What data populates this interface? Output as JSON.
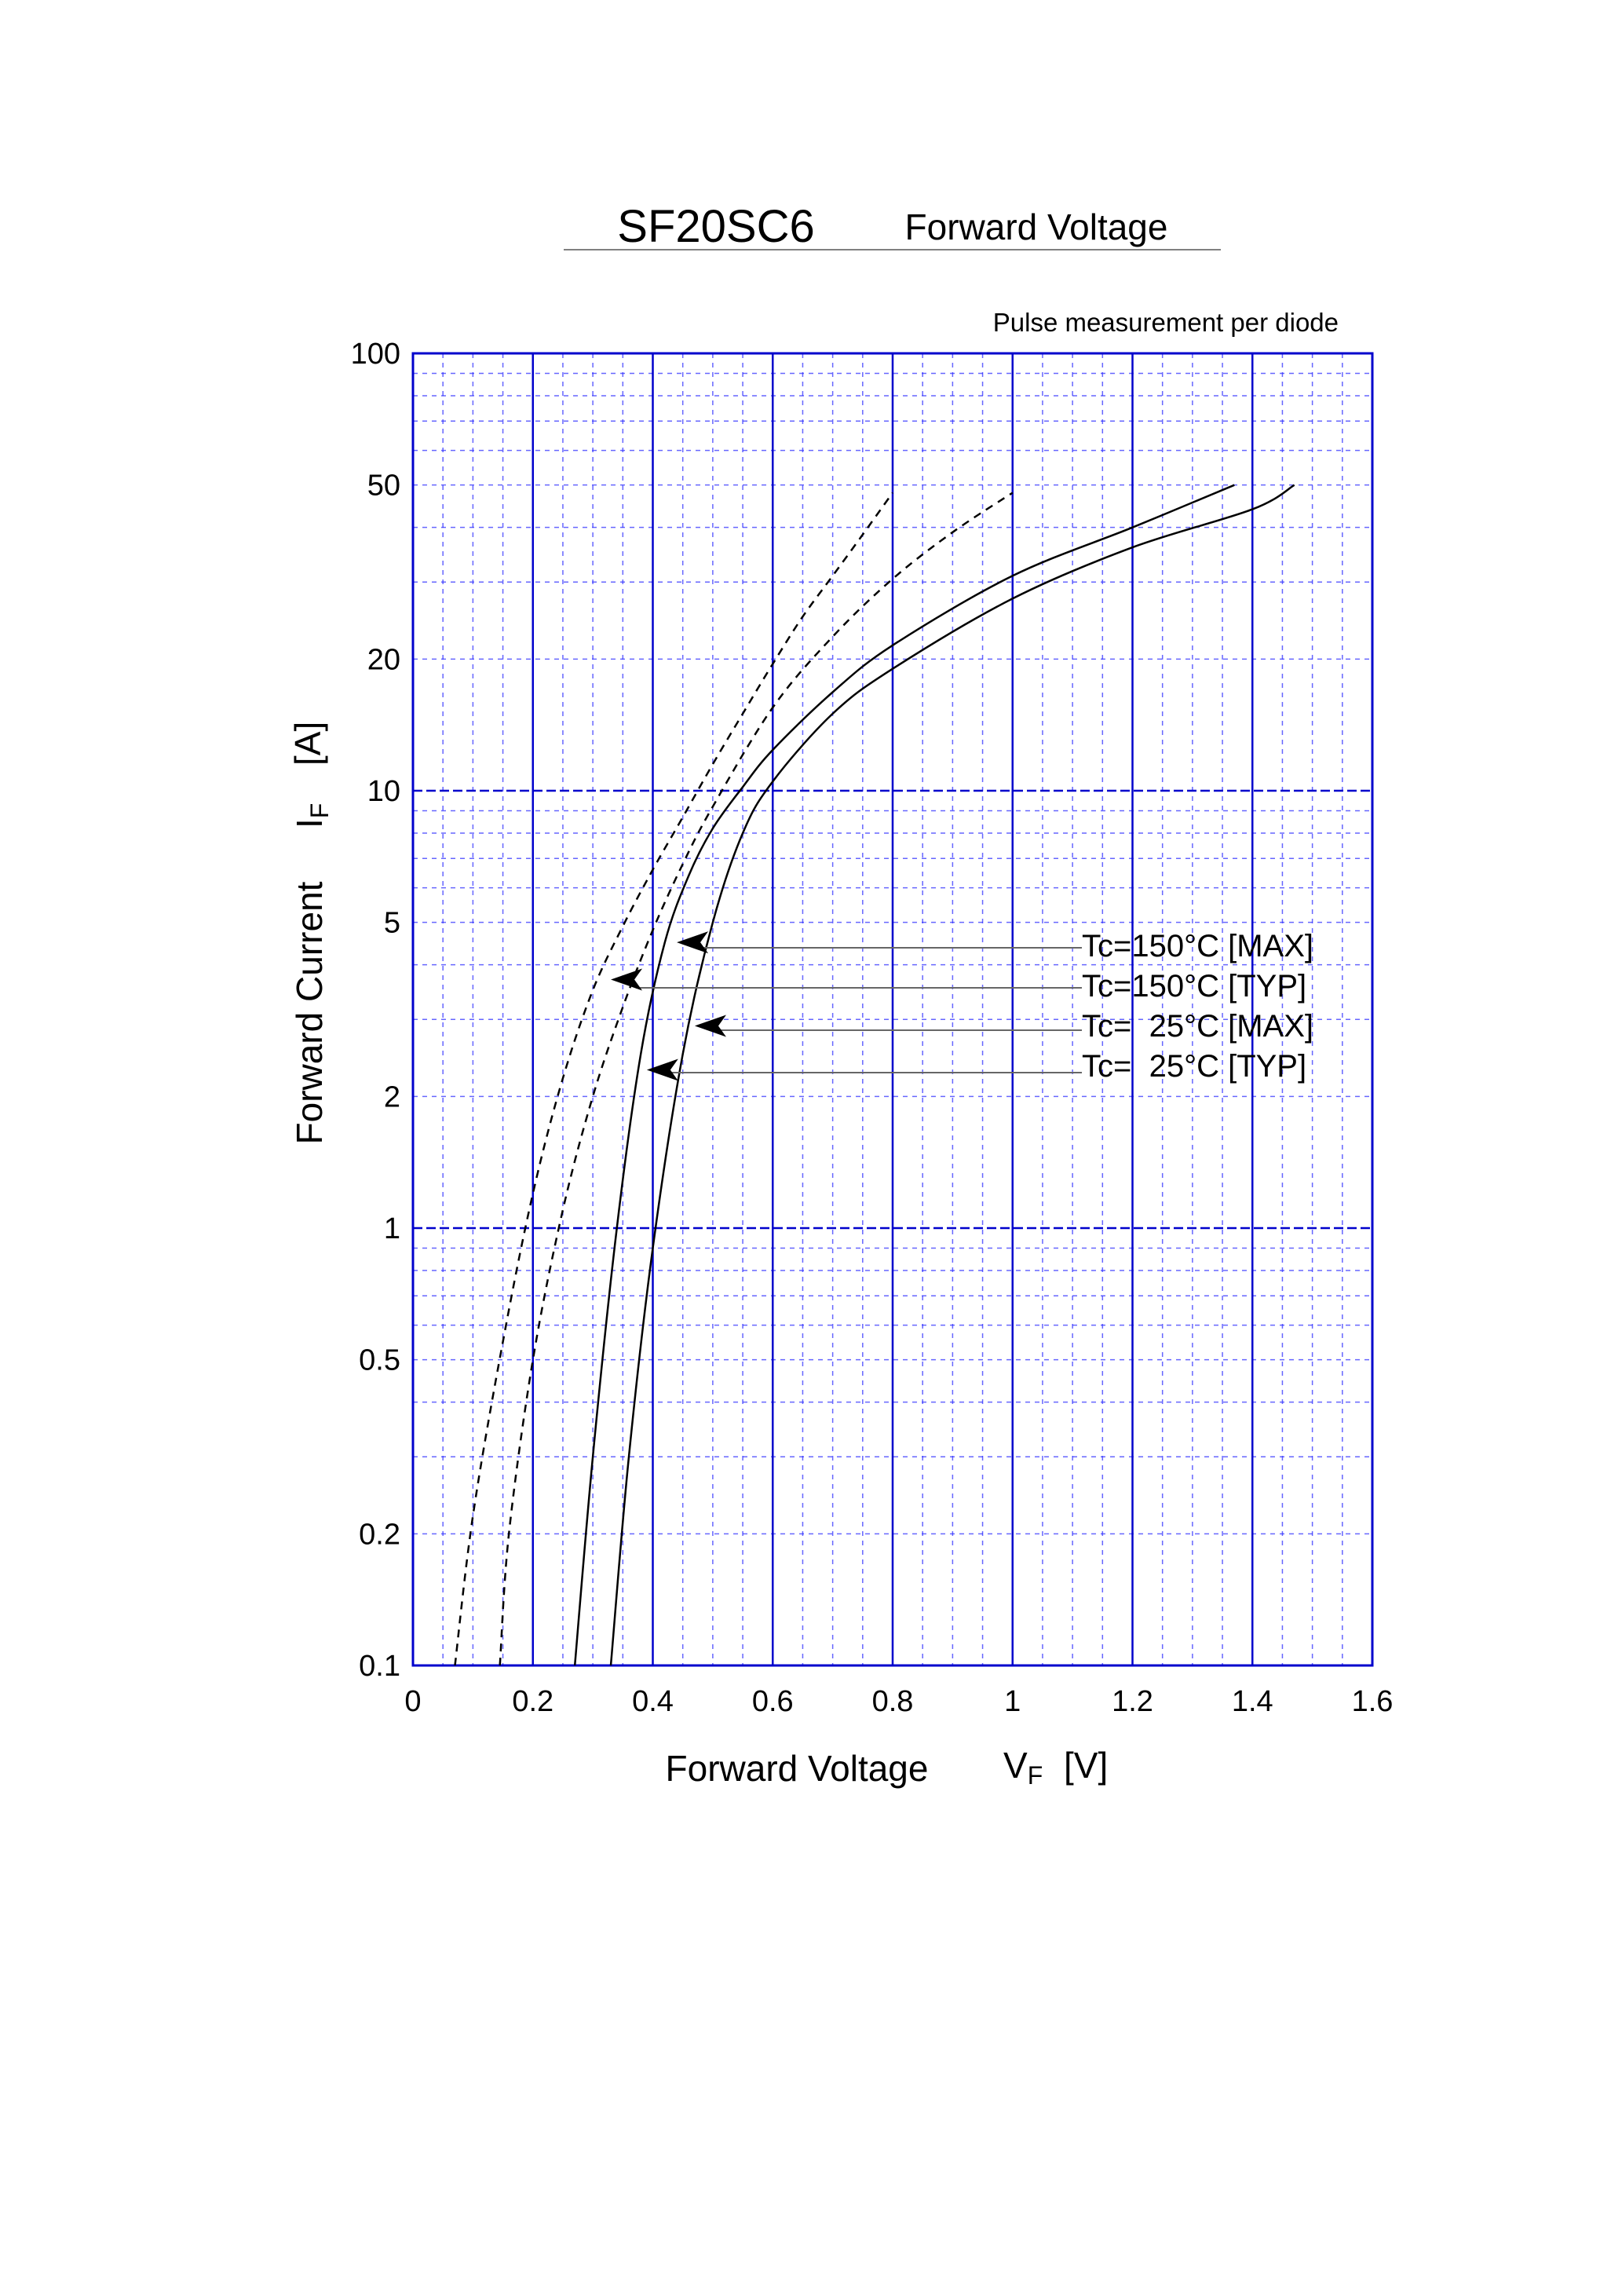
{
  "header": {
    "part_number": "SF20SC6",
    "title": "Forward Voltage"
  },
  "chart_data": {
    "type": "line",
    "note": "Pulse measurement per diode",
    "xlabel": "Forward Voltage",
    "xsymbol": "V",
    "xsymbol_sub": "F",
    "xunit": "[V]",
    "ylabel": "Forward Current",
    "ysymbol": "I",
    "ysymbol_sub": "F",
    "yunit": "[A]",
    "xlim": [
      0,
      1.6
    ],
    "ylim": [
      0.1,
      100
    ],
    "yscale": "log",
    "grid": true,
    "xticks": [
      0,
      0.2,
      0.4,
      0.6,
      0.8,
      1,
      1.2,
      1.4,
      1.6
    ],
    "xtick_labels": [
      "0",
      "0.2",
      "0.4",
      "0.6",
      "0.8",
      "1",
      "1.2",
      "1.4",
      "1.6"
    ],
    "yticks": [
      0.1,
      0.2,
      0.5,
      1,
      2,
      5,
      10,
      20,
      50,
      100
    ],
    "ytick_labels": [
      "0.1",
      "0.2",
      "0.5",
      "1",
      "2",
      "5",
      "10",
      "20",
      "50",
      "100"
    ],
    "series": [
      {
        "name": "Tc=150°C [MAX]",
        "style": "dashed",
        "x": [
          0.145,
          0.16,
          0.2,
          0.25,
          0.3,
          0.35,
          0.4,
          0.45,
          0.5,
          0.6,
          0.7,
          0.8,
          0.9,
          1.0
        ],
        "y": [
          0.1,
          0.2,
          0.5,
          1.1,
          2.0,
          3.2,
          4.8,
          6.8,
          9.2,
          15.5,
          22.5,
          30.5,
          39.0,
          48.0
        ]
      },
      {
        "name": "Tc=150°C [TYP]",
        "style": "dashed",
        "x": [
          0.07,
          0.1,
          0.15,
          0.2,
          0.25,
          0.3,
          0.35,
          0.4,
          0.45,
          0.5,
          0.55,
          0.6,
          0.65,
          0.7,
          0.75,
          0.8
        ],
        "y": [
          0.1,
          0.22,
          0.55,
          1.2,
          2.2,
          3.5,
          4.9,
          6.6,
          8.7,
          11.5,
          15.0,
          19.5,
          25.0,
          31.0,
          38.5,
          48.0
        ]
      },
      {
        "name": "Tc=  25°C [MAX]",
        "style": "solid",
        "x": [
          0.33,
          0.36,
          0.4,
          0.45,
          0.5,
          0.55,
          0.6,
          0.7,
          0.8,
          1.0,
          1.2,
          1.4,
          1.47
        ],
        "y": [
          0.1,
          0.3,
          0.9,
          2.5,
          5.0,
          8.0,
          10.5,
          15.0,
          19.0,
          27.5,
          36.0,
          44.0,
          50.0
        ]
      },
      {
        "name": "Tc=  25°C [TYP]",
        "style": "solid",
        "x": [
          0.27,
          0.3,
          0.34,
          0.38,
          0.42,
          0.46,
          0.5,
          0.55,
          0.6,
          0.7,
          0.8,
          1.0,
          1.2,
          1.37
        ],
        "y": [
          0.1,
          0.3,
          1.0,
          2.5,
          4.5,
          6.4,
          8.2,
          10.2,
          12.4,
          16.8,
          21.5,
          31.0,
          40.0,
          50.0
        ]
      }
    ],
    "annotations": [
      {
        "text": "Tc=150°C [MAX]",
        "arrow_x": 0.44,
        "arrow_y": 4.5
      },
      {
        "text": "Tc=150°C [TYP]",
        "arrow_x": 0.33,
        "arrow_y": 3.7
      },
      {
        "text": "Tc=  25°C [MAX]",
        "arrow_x": 0.47,
        "arrow_y": 2.9
      },
      {
        "text": "Tc=  25°C [TYP]",
        "arrow_x": 0.39,
        "arrow_y": 2.3
      }
    ]
  },
  "colors": {
    "grid_major": "#0000cc",
    "grid_minor": "#3333ff",
    "curve": "#000000",
    "leader": "#666666"
  }
}
